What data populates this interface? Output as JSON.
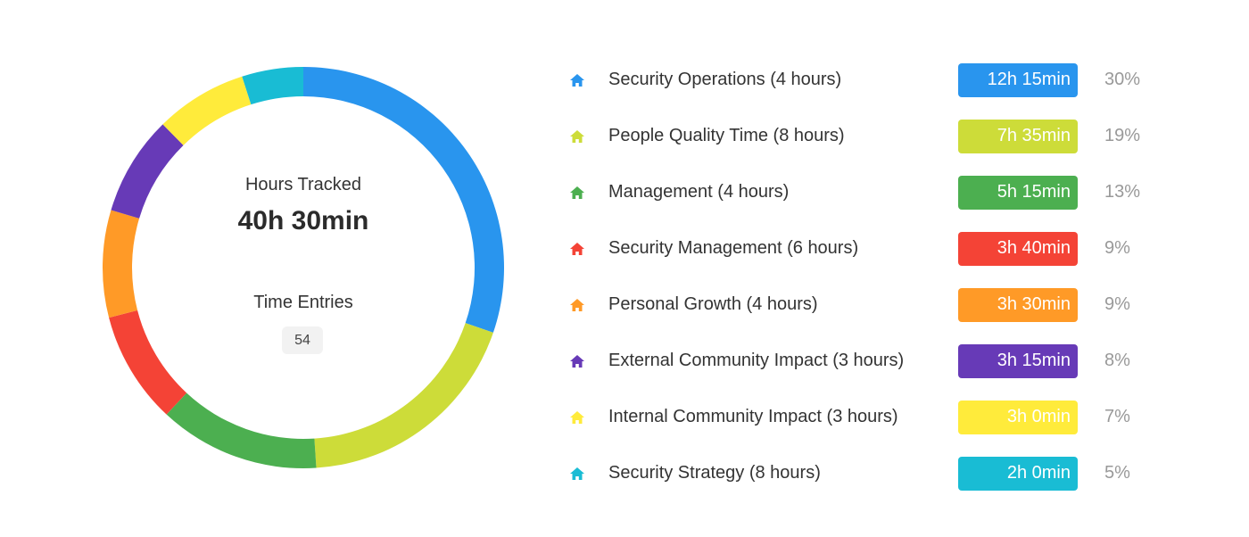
{
  "summary": {
    "hours_label": "Hours Tracked",
    "hours_value": "40h 30min",
    "entries_label": "Time Entries",
    "entries_count": "54"
  },
  "chart_data": {
    "type": "pie",
    "donut": true,
    "categories": [
      "Security Operations (4 hours)",
      "People Quality Time (8 hours)",
      "Management (4 hours)",
      "Security Management (6 hours)",
      "Personal Growth (4 hours)",
      "External Community Impact (3 hours)",
      "Internal Community Impact (3 hours)",
      "Security Strategy (8 hours)"
    ],
    "values": [
      735,
      455,
      315,
      220,
      210,
      195,
      180,
      120
    ],
    "durations": [
      "12h 15min",
      "7h 35min",
      "5h 15min",
      "3h 40min",
      "3h 30min",
      "3h 15min",
      "3h 0min",
      "2h 0min"
    ],
    "percents": [
      "30%",
      "19%",
      "13%",
      "9%",
      "9%",
      "8%",
      "7%",
      "5%"
    ],
    "colors": [
      "#2995EE",
      "#CDDC39",
      "#4CAF50",
      "#F44336",
      "#FF9A27",
      "#673AB7",
      "#FFEB3B",
      "#19BCD4"
    ],
    "icon": "house-icon",
    "legend_position": "right"
  }
}
